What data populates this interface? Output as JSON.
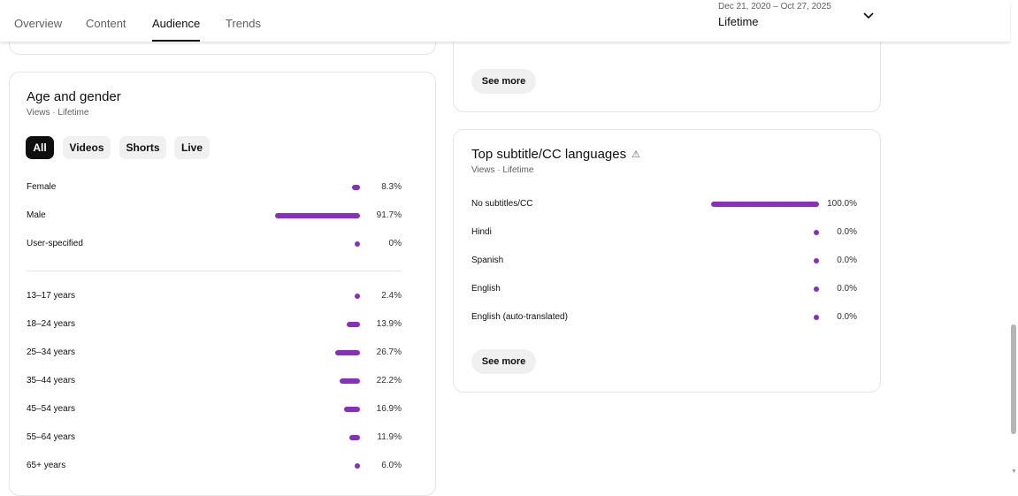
{
  "tabs": [
    {
      "label": "Overview"
    },
    {
      "label": "Content"
    },
    {
      "label": "Audience",
      "active": true
    },
    {
      "label": "Trends"
    }
  ],
  "date_range": {
    "range": "Dec 21, 2020 – Oct 27, 2025",
    "label": "Lifetime"
  },
  "accent": "#8a2ebe",
  "age_gender": {
    "title": "Age and gender",
    "subtitle": "Views · Lifetime",
    "chips": [
      "All",
      "Videos",
      "Shorts",
      "Live"
    ],
    "gender": [
      {
        "label": "Female",
        "value": 8.3,
        "text": "8.3%"
      },
      {
        "label": "Male",
        "value": 91.7,
        "text": "91.7%"
      },
      {
        "label": "User-specified",
        "value": 0,
        "text": "0%"
      }
    ],
    "age": [
      {
        "label": "13–17 years",
        "value": 2.4,
        "text": "2.4%"
      },
      {
        "label": "18–24 years",
        "value": 13.9,
        "text": "13.9%"
      },
      {
        "label": "25–34 years",
        "value": 26.7,
        "text": "26.7%"
      },
      {
        "label": "35–44 years",
        "value": 22.2,
        "text": "22.2%"
      },
      {
        "label": "45–54 years",
        "value": 16.9,
        "text": "16.9%"
      },
      {
        "label": "55–64 years",
        "value": 11.9,
        "text": "11.9%"
      },
      {
        "label": "65+ years",
        "value": 6.0,
        "text": "6.0%"
      }
    ]
  },
  "top_card": {
    "see_more": "See more"
  },
  "subtitles": {
    "title": "Top subtitle/CC languages",
    "warning_icon": "warning-triangle-icon",
    "subtitle": "Views · Lifetime",
    "rows": [
      {
        "label": "No subtitles/CC",
        "value": 100,
        "text": "100.0%"
      },
      {
        "label": "Hindi",
        "value": 0,
        "text": "0.0%"
      },
      {
        "label": "Spanish",
        "value": 0,
        "text": "0.0%"
      },
      {
        "label": "English",
        "value": 0,
        "text": "0.0%"
      },
      {
        "label": "English (auto-translated)",
        "value": 0,
        "text": "0.0%"
      }
    ],
    "see_more": "See more"
  }
}
